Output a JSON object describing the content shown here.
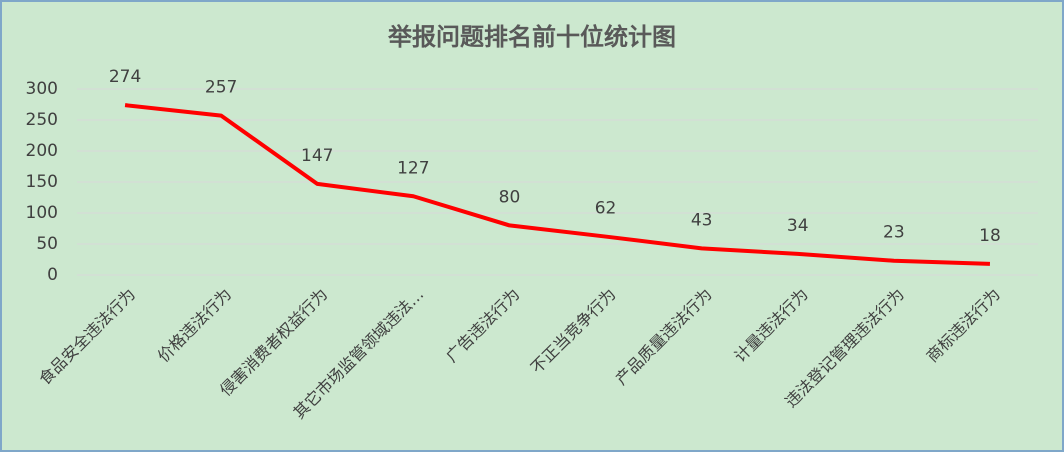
{
  "chart_data": {
    "type": "line",
    "title": "举报问题排名前十位统计图",
    "categories": [
      "食品安全违法行为",
      "价格违法行为",
      "侵害消费者权益行为",
      "其它市场监管领域违法…",
      "广告违法行为",
      "不正当竞争行为",
      "产品质量违法行为",
      "计量违法行为",
      "违法登记管理违法行为",
      "商标违法行为"
    ],
    "values": [
      274,
      257,
      147,
      127,
      80,
      62,
      43,
      34,
      23,
      18
    ],
    "color": "#ff0000",
    "ylim": [
      0,
      300
    ],
    "yticks": [
      0,
      50,
      100,
      150,
      200,
      250,
      300
    ],
    "grid": true
  }
}
